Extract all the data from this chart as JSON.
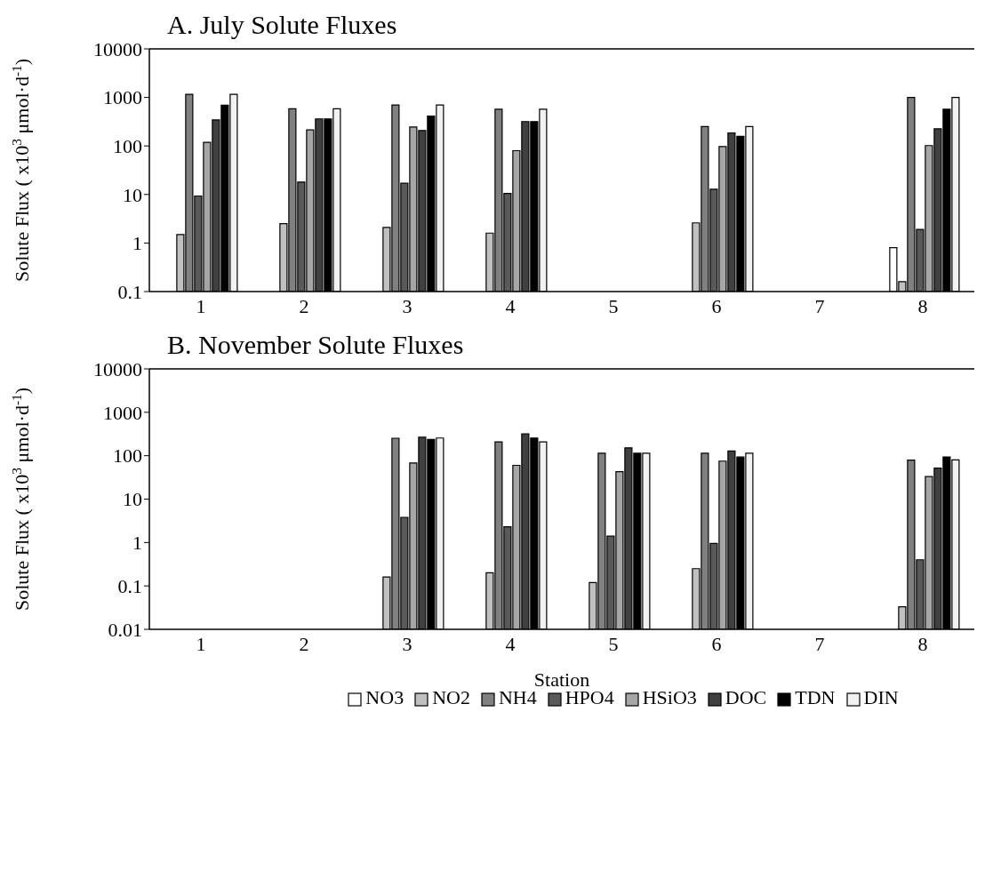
{
  "chart_data": [
    {
      "type": "bar",
      "title": "A. July Solute Fluxes",
      "ylabel": "Solute Flux ( x10$^{3}$ μmol·d$^{-1}$)",
      "categories": [
        "1",
        "2",
        "3",
        "4",
        "5",
        "6",
        "7",
        "8"
      ],
      "log": true,
      "ylim": [
        0.1,
        10000
      ],
      "yticks": [
        0.1,
        1,
        10,
        100,
        1000,
        10000
      ],
      "grid": false,
      "legend": false,
      "series": [
        {
          "color": "#ffffff",
          "values": [
            null,
            null,
            null,
            null,
            null,
            null,
            null,
            0.8
          ]
        },
        {
          "color": "#c0c0c0",
          "values": [
            1.5,
            2.5,
            2.1,
            1.6,
            null,
            2.6,
            null,
            0.16
          ]
        },
        {
          "color": "#808080",
          "values": [
            1160,
            585,
            700,
            570,
            null,
            250,
            null,
            1000
          ]
        },
        {
          "color": "#595959",
          "values": [
            9.3,
            18,
            17,
            10.5,
            null,
            12.8,
            null,
            1.9
          ]
        },
        {
          "color": "#a6a6a6",
          "values": [
            119,
            214,
            245,
            80,
            null,
            97,
            null,
            102
          ]
        },
        {
          "color": "#404040",
          "values": [
            343,
            361,
            208,
            318,
            null,
            186,
            null,
            225
          ]
        },
        {
          "color": "#000000",
          "values": [
            688,
            361,
            413,
            318,
            null,
            158,
            null,
            570
          ]
        },
        {
          "color": "#f2f2f2",
          "values": [
            1160,
            585,
            700,
            570,
            null,
            250,
            null,
            1000
          ]
        }
      ]
    },
    {
      "type": "bar",
      "title": "B. November Solute Fluxes",
      "xlabel": "Station",
      "ylabel": "Solute Flux ( x10$^{3}$ μmol·d$^{-1}$)",
      "categories": [
        "1",
        "2",
        "3",
        "4",
        "5",
        "6",
        "7",
        "8"
      ],
      "log": true,
      "ylim": [
        0.01,
        10000
      ],
      "yticks": [
        0.01,
        0.1,
        1,
        10,
        100,
        1000,
        10000
      ],
      "grid": false,
      "legend": "bottom",
      "series": [
        {
          "name": "NO3",
          "color": "#ffffff",
          "values": [
            null,
            null,
            null,
            null,
            null,
            null,
            null,
            null
          ]
        },
        {
          "name": "NO2",
          "color": "#c0c0c0",
          "values": [
            null,
            null,
            0.16,
            0.2,
            0.12,
            0.25,
            null,
            0.033
          ]
        },
        {
          "name": "NH4",
          "color": "#808080",
          "values": [
            null,
            null,
            253,
            209,
            114,
            114,
            null,
            79
          ]
        },
        {
          "name": "HPO4",
          "color": "#595959",
          "values": [
            null,
            null,
            3.8,
            2.3,
            1.4,
            0.95,
            null,
            0.4
          ]
        },
        {
          "name": "HSiO3",
          "color": "#a6a6a6",
          "values": [
            null,
            null,
            68,
            60,
            43,
            75,
            null,
            33
          ]
        },
        {
          "name": "DOC",
          "color": "#404040",
          "values": [
            null,
            null,
            268,
            318,
            152,
            128,
            null,
            52
          ]
        },
        {
          "name": "TDN",
          "color": "#000000",
          "values": [
            null,
            null,
            238,
            256,
            114,
            93,
            null,
            94
          ]
        },
        {
          "name": "DIN",
          "color": "#f2f2f2",
          "values": [
            null,
            null,
            256,
            209,
            114,
            114,
            null,
            80
          ]
        }
      ]
    }
  ]
}
